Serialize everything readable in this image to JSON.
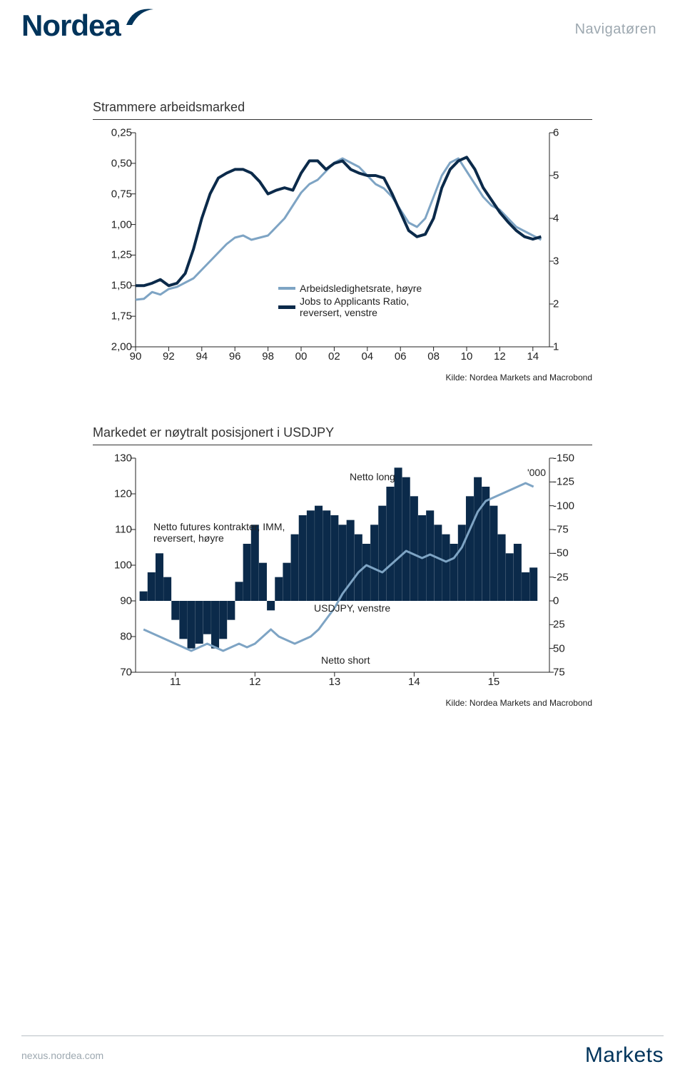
{
  "header": {
    "brand": "Nordea",
    "page_label": "Navigatøren"
  },
  "chart1": {
    "title": "Strammere arbeidsmarked",
    "type": "line",
    "y_left_ticks": [
      "0,25",
      "0,50",
      "0,75",
      "1,00",
      "1,25",
      "1,50",
      "1,75",
      "2,00"
    ],
    "y_left_min": 0.25,
    "y_left_max": 2.0,
    "y_right_ticks": [
      "6",
      "5",
      "4",
      "3",
      "2",
      "1"
    ],
    "y_right_min": 1,
    "y_right_max": 6,
    "x_ticks": [
      "90",
      "92",
      "94",
      "96",
      "98",
      "00",
      "02",
      "04",
      "06",
      "08",
      "10",
      "12",
      "14"
    ],
    "x_min": 90,
    "x_max": 115,
    "legend": [
      {
        "label": "Arbeidsledighetsrate, høyre",
        "color": "#7ea4c4"
      },
      {
        "label": "Jobs to Applicants Ratio, reversert, venstre",
        "color": "#0b2a4a"
      }
    ],
    "line_light_color": "#7ea4c4",
    "line_dark_color": "#0b2a4a",
    "line_width_light": 3,
    "line_width_dark": 4,
    "axis_color": "#222",
    "source_text": "Kilde: Nordea Markets and Macrobond",
    "series_dark_y": [
      1.5,
      1.5,
      1.48,
      1.45,
      1.5,
      1.48,
      1.4,
      1.2,
      0.95,
      0.75,
      0.62,
      0.58,
      0.55,
      0.55,
      0.58,
      0.65,
      0.75,
      0.72,
      0.7,
      0.72,
      0.58,
      0.48,
      0.48,
      0.55,
      0.5,
      0.48,
      0.55,
      0.58,
      0.6,
      0.6,
      0.62,
      0.75,
      0.9,
      1.05,
      1.1,
      1.08,
      0.95,
      0.7,
      0.55,
      0.48,
      0.45,
      0.55,
      0.7,
      0.8,
      0.9,
      0.98,
      1.05,
      1.1,
      1.12,
      1.1
    ],
    "series_light_y": [
      2.1,
      2.12,
      2.28,
      2.22,
      2.35,
      2.4,
      2.5,
      2.6,
      2.8,
      3.0,
      3.2,
      3.4,
      3.55,
      3.6,
      3.5,
      3.55,
      3.6,
      3.8,
      4.0,
      4.3,
      4.6,
      4.8,
      4.9,
      5.1,
      5.3,
      5.4,
      5.3,
      5.2,
      5.0,
      4.8,
      4.7,
      4.5,
      4.2,
      3.9,
      3.8,
      4.0,
      4.5,
      5.0,
      5.3,
      5.4,
      5.1,
      4.8,
      4.5,
      4.3,
      4.2,
      4.0,
      3.8,
      3.7,
      3.6,
      3.5
    ],
    "series_x": [
      90,
      90.5,
      91,
      91.5,
      92,
      92.5,
      93,
      93.5,
      94,
      94.5,
      95,
      95.5,
      96,
      96.5,
      97,
      97.5,
      98,
      98.5,
      99,
      99.5,
      100,
      100.5,
      101,
      101.5,
      102,
      102.5,
      103,
      103.5,
      104,
      104.5,
      105,
      105.5,
      106,
      106.5,
      107,
      107.5,
      108,
      108.5,
      109,
      109.5,
      110,
      110.5,
      111,
      111.5,
      112,
      112.5,
      113,
      113.5,
      114,
      114.5
    ]
  },
  "chart2": {
    "title": "Markedet er nøytralt posisjonert i USDJPY",
    "type": "line-bar",
    "y_left_ticks": [
      "130",
      "120",
      "110",
      "100",
      "90",
      "80",
      "70"
    ],
    "y_left_min": 70,
    "y_left_max": 130,
    "y_right_ticks": [
      "-150",
      "-125",
      "-100",
      "-75",
      "-50",
      "-25",
      "0",
      "25",
      "50",
      "75"
    ],
    "y_right_min": -150,
    "y_right_max": 75,
    "x_ticks": [
      "11",
      "12",
      "13",
      "14",
      "15"
    ],
    "x_min": 10.5,
    "x_max": 15.7,
    "line_color": "#7ea4c4",
    "bar_color": "#0b2a4a",
    "line_width": 3,
    "axis_color": "#222",
    "annotations": {
      "netto_long": "Netto long",
      "units": "'000",
      "series_left_label": "Netto futures kontrakter, IMM, reversert, høyre",
      "line_label": "USDJPY, venstre",
      "netto_short": "Netto short"
    },
    "source_text": "Kilde: Nordea Markets and Macrobond",
    "bars_x": [
      10.6,
      10.7,
      10.8,
      10.9,
      11.0,
      11.1,
      11.2,
      11.3,
      11.4,
      11.5,
      11.6,
      11.7,
      11.8,
      11.9,
      12.0,
      12.1,
      12.2,
      12.3,
      12.4,
      12.5,
      12.6,
      12.7,
      12.8,
      12.9,
      13.0,
      13.1,
      13.2,
      13.3,
      13.4,
      13.5,
      13.6,
      13.7,
      13.8,
      13.9,
      14.0,
      14.1,
      14.2,
      14.3,
      14.4,
      14.5,
      14.6,
      14.7,
      14.8,
      14.9,
      15.0,
      15.1,
      15.2,
      15.3,
      15.4,
      15.5
    ],
    "bars_y": [
      -10,
      -30,
      -50,
      -25,
      20,
      40,
      50,
      45,
      35,
      50,
      40,
      20,
      -20,
      -60,
      -80,
      -40,
      10,
      -25,
      -40,
      -70,
      -90,
      -95,
      -100,
      -95,
      -90,
      -80,
      -85,
      -70,
      -60,
      -80,
      -100,
      -120,
      -140,
      -130,
      -110,
      -90,
      -95,
      -80,
      -70,
      -60,
      -80,
      -110,
      -130,
      -120,
      -100,
      -70,
      -50,
      -60,
      -30,
      -35
    ],
    "line_x": [
      10.6,
      10.7,
      10.8,
      10.9,
      11.0,
      11.1,
      11.2,
      11.3,
      11.4,
      11.5,
      11.6,
      11.7,
      11.8,
      11.9,
      12.0,
      12.1,
      12.2,
      12.3,
      12.4,
      12.5,
      12.6,
      12.7,
      12.8,
      12.9,
      13.0,
      13.1,
      13.2,
      13.3,
      13.4,
      13.5,
      13.6,
      13.7,
      13.8,
      13.9,
      14.0,
      14.1,
      14.2,
      14.3,
      14.4,
      14.5,
      14.6,
      14.7,
      14.8,
      14.9,
      15.0,
      15.1,
      15.2,
      15.3,
      15.4,
      15.5
    ],
    "line_y": [
      82,
      81,
      80,
      79,
      78,
      77,
      76,
      77,
      78,
      77,
      76,
      77,
      78,
      77,
      78,
      80,
      82,
      80,
      79,
      78,
      79,
      80,
      82,
      85,
      88,
      92,
      95,
      98,
      100,
      99,
      98,
      100,
      102,
      104,
      103,
      102,
      103,
      102,
      101,
      102,
      105,
      110,
      115,
      118,
      119,
      120,
      121,
      122,
      123,
      122
    ]
  },
  "footer": {
    "left": "nexus.nordea.com",
    "right": "Markets"
  },
  "colors": {
    "brand": "#00345b",
    "muted": "#9da8b0"
  }
}
